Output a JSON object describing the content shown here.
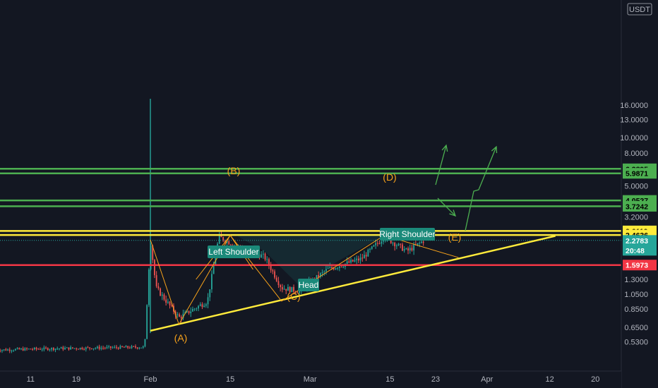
{
  "chart_data": {
    "type": "candlestick",
    "scale": "log",
    "quote_currency": "USDT",
    "y_ticks": [
      "16.0000",
      "13.0000",
      "10.0000",
      "8.0000",
      "5.0000",
      "3.2000",
      "1.3000",
      "1.0500",
      "0.8500",
      "0.6500",
      "0.5300"
    ],
    "x_ticks": [
      "11",
      "19",
      "Feb",
      "15",
      "Mar",
      "15",
      "23",
      "Apr",
      "12",
      "20"
    ],
    "horizontal_levels": [
      {
        "price": "6.3895",
        "color": "#4caf50"
      },
      {
        "price": "5.9871",
        "color": "#4caf50"
      },
      {
        "price": "4.0527",
        "color": "#4caf50"
      },
      {
        "price": "3.7242",
        "color": "#4caf50"
      },
      {
        "price": "2.6119",
        "color": "#ffeb3b"
      },
      {
        "price": "2.4636",
        "color": "#ffeb3b"
      },
      {
        "price": "1.5973",
        "color": "#f23645"
      }
    ],
    "current_price": {
      "price": "2.2783",
      "countdown": "20:48",
      "color": "#26a69a"
    },
    "wave_labels": [
      "(A)",
      "(B)",
      "(C)",
      "(D)",
      "(E)"
    ],
    "annotations": [
      "Left Shoulder",
      "Head",
      "Right Shoulder"
    ],
    "price_path": [
      {
        "date": "2021-01-05",
        "price": 0.47
      },
      {
        "date": "2021-01-15",
        "price": 0.48
      },
      {
        "date": "2021-01-31",
        "price": 0.49
      },
      {
        "date": "2021-02-01",
        "price": 2.3
      },
      {
        "date": "2021-02-02",
        "price": 1.15
      },
      {
        "date": "2021-02-06",
        "price": 0.75
      },
      {
        "date": "2021-02-11",
        "price": 0.95
      },
      {
        "date": "2021-02-13",
        "price": 2.4
      },
      {
        "date": "2021-02-16",
        "price": 2.1
      },
      {
        "date": "2021-02-21",
        "price": 1.8
      },
      {
        "date": "2021-02-24",
        "price": 1.15
      },
      {
        "date": "2021-02-27",
        "price": 1.1
      },
      {
        "date": "2021-03-04",
        "price": 1.5
      },
      {
        "date": "2021-03-10",
        "price": 1.75
      },
      {
        "date": "2021-03-14",
        "price": 2.4
      },
      {
        "date": "2021-03-18",
        "price": 1.95
      },
      {
        "date": "2021-03-21",
        "price": 2.28
      }
    ],
    "colors": {
      "background": "#131722",
      "up": "#26a69a",
      "down": "#ef5350",
      "trendline": "#ffeb3b",
      "wave": "#f7a21b",
      "projection": "#4caf50",
      "note_bg": "#1b8a7a"
    }
  }
}
